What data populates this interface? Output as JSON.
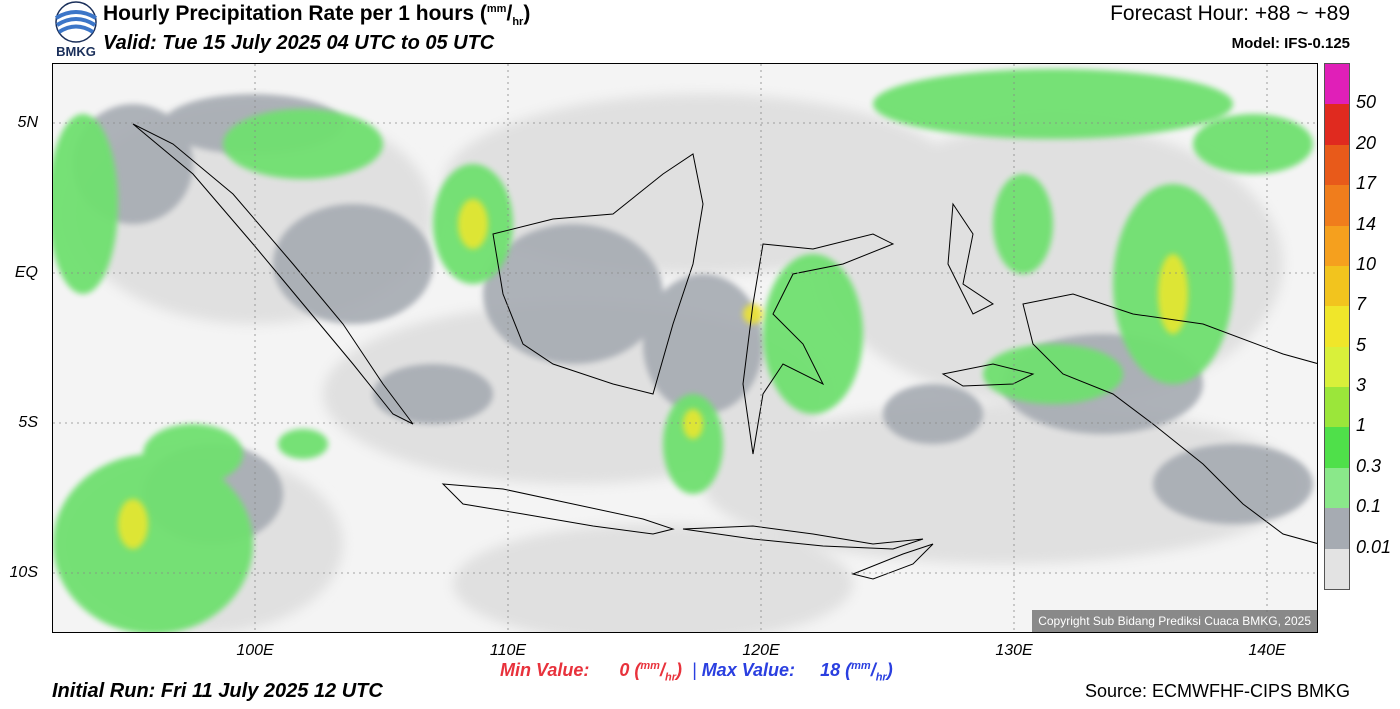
{
  "header": {
    "title_prefix": "Hourly Precipitation Rate per 1 hours (",
    "title_unit_top": "mm",
    "title_unit_bottom": "hr",
    "title_suffix": ")",
    "valid": "Valid: Tue 15 July 2025 04 UTC to 05 UTC",
    "forecast_hour": "Forecast Hour: +88 ~ +89",
    "model": "Model: IFS-0.125"
  },
  "logo": {
    "text": "BMKG",
    "icon": "bmkg-logo-icon"
  },
  "map": {
    "lat_labels": [
      "5N",
      "EQ",
      "5S",
      "10S"
    ],
    "lon_labels": [
      "100E",
      "110E",
      "120E",
      "130E",
      "140E"
    ],
    "lon_range": [
      92,
      142
    ],
    "lat_range": [
      -12,
      7.2
    ],
    "copyright": "Copyright Sub Bidang Prediksi Cuaca BMKG, 2025"
  },
  "legend": {
    "labels": [
      "50",
      "20",
      "17",
      "14",
      "10",
      "7",
      "5",
      "3",
      "1",
      "0.3",
      "0.1",
      "0.01"
    ],
    "colors": [
      "#e01fb8",
      "#e02a1f",
      "#e85a1a",
      "#f07d1c",
      "#f5a01e",
      "#f2c41e",
      "#f0e62a",
      "#d9f03a",
      "#9be63a",
      "#4fe04a",
      "#8ae88a",
      "#a6abb2",
      "#e3e3e3"
    ]
  },
  "footer": {
    "min_label": "Min Value:",
    "min_value": "0",
    "max_label": "Max Value:",
    "max_value": "18",
    "unit_top": "mm",
    "unit_bottom": "hr",
    "initial_run": "Initial Run: Fri 11 July 2025 12 UTC",
    "source": "Source: ECMWFHF-CIPS BMKG"
  }
}
